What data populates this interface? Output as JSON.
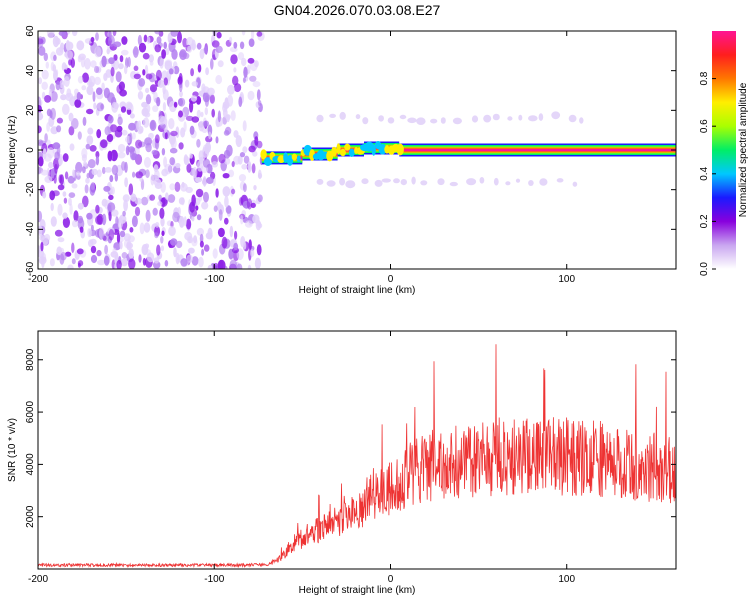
{
  "title": "GN04.2026.070.03.08.E27",
  "colors": {
    "snr_line": "#ee3333",
    "frame": "#000000"
  },
  "chart_data": [
    {
      "type": "heatmap",
      "name": "spectrogram",
      "xlabel": "Height of straight line (km)",
      "ylabel": "Frequency (Hz)",
      "xlim": [
        -200,
        162
      ],
      "ylim": [
        -60,
        60
      ],
      "xticks": [
        -200,
        -100,
        0,
        100
      ],
      "yticks": [
        60,
        40,
        20,
        0,
        -20,
        -40,
        -60
      ],
      "colorbar": {
        "label": "Normalized spectral amplitude",
        "range": [
          0,
          1
        ],
        "ticks": [
          "0.0",
          "0.2",
          "0.4",
          "0.6",
          "0.8"
        ],
        "colormap": [
          "#ffffff",
          "#c9a6f0",
          "#8800dd",
          "#1a1aff",
          "#00c8ff",
          "#00ee66",
          "#aaff00",
          "#ffee00",
          "#ff7700",
          "#ff1e1e",
          "#ff1493"
        ]
      },
      "noise_region": {
        "x_range": [
          -200,
          -73
        ],
        "freq_range": [
          -60,
          60
        ],
        "amplitude_range": [
          0.05,
          0.3
        ]
      },
      "carrier_segments": [
        {
          "x_start": -73,
          "x_end": -50,
          "freq": -4
        },
        {
          "x_start": -50,
          "x_end": -30,
          "freq": -2
        },
        {
          "x_start": -30,
          "x_end": -15,
          "freq": 0
        },
        {
          "x_start": -15,
          "x_end": 5,
          "freq": 1
        },
        {
          "x_start": 5,
          "x_end": 162,
          "freq": 0
        }
      ],
      "sidebands": {
        "freqs": [
          16,
          -16
        ],
        "x_range": [
          -40,
          110
        ]
      }
    },
    {
      "type": "line",
      "name": "snr",
      "xlabel": "Height of straight line (km)",
      "ylabel": "SNR (10 * v/v)",
      "xlim": [
        -200,
        162
      ],
      "ylim": [
        0,
        9100
      ],
      "xticks": [
        -200,
        -100,
        0,
        100
      ],
      "yticks": [
        2000,
        4000,
        6000,
        8000
      ],
      "series": [
        {
          "name": "SNR",
          "x": [
            -200,
            -180,
            -160,
            -140,
            -120,
            -100,
            -80,
            -70,
            -65,
            -60,
            -55,
            -50,
            -40,
            -30,
            -20,
            -10,
            0,
            10,
            20,
            30,
            40,
            50,
            60,
            70,
            80,
            90,
            100,
            110,
            120,
            130,
            140,
            150,
            162
          ],
          "y": [
            150,
            150,
            150,
            150,
            150,
            150,
            150,
            180,
            300,
            600,
            1000,
            1200,
            1500,
            1800,
            2200,
            2800,
            3200,
            3600,
            3900,
            4000,
            4100,
            4200,
            4300,
            4300,
            4300,
            4300,
            4300,
            4250,
            4200,
            4100,
            3950,
            3900,
            3800
          ]
        }
      ]
    }
  ]
}
